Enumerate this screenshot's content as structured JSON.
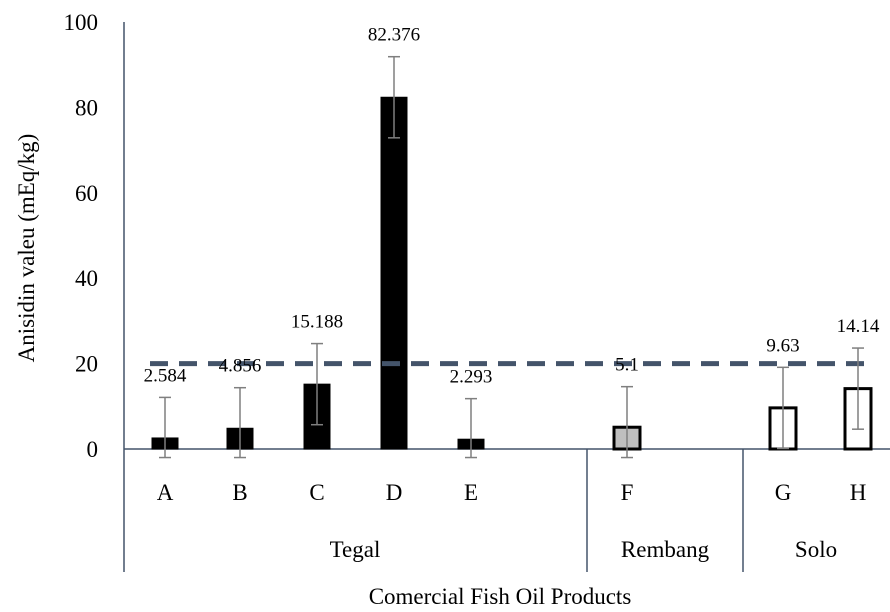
{
  "chart_data": {
    "type": "bar",
    "title": "",
    "xlabel": "Comercial Fish Oil Products",
    "ylabel": "Anisidin valeu (mEq/kg)",
    "ylim": [
      0,
      100
    ],
    "yticks": [
      "0",
      "20",
      "40",
      "60",
      "80",
      "100"
    ],
    "categories": [
      "A",
      "B",
      "C",
      "D",
      "E",
      "F",
      "G",
      "H"
    ],
    "values": [
      2.584,
      4.856,
      15.188,
      82.376,
      2.293,
      5.1,
      9.63,
      14.14
    ],
    "value_labels": [
      "2.584",
      "4.856",
      "15.188",
      "82.376",
      "2.293",
      "5.1",
      "9.63",
      "14.14"
    ],
    "error": [
      9.5,
      9.5,
      9.5,
      9.5,
      9.5,
      9.5,
      9.5,
      9.5
    ],
    "groups": [
      {
        "name": "Tegal",
        "members": [
          "A",
          "B",
          "C",
          "D",
          "E"
        ],
        "fill": "#000000",
        "stroke": "#000000"
      },
      {
        "name": "Rembang",
        "members": [
          "F"
        ],
        "fill": "#bfbfbf",
        "stroke": "#000000"
      },
      {
        "name": "Solo",
        "members": [
          "G",
          "H"
        ],
        "fill": "#ffffff",
        "stroke": "#000000"
      }
    ],
    "reference_line": {
      "value": 20,
      "style": "dashed",
      "color": "#44546a"
    },
    "grid": false,
    "legend": "none",
    "colors": {
      "axis": "#44546a",
      "error_bar": "#7f7f7f"
    }
  }
}
